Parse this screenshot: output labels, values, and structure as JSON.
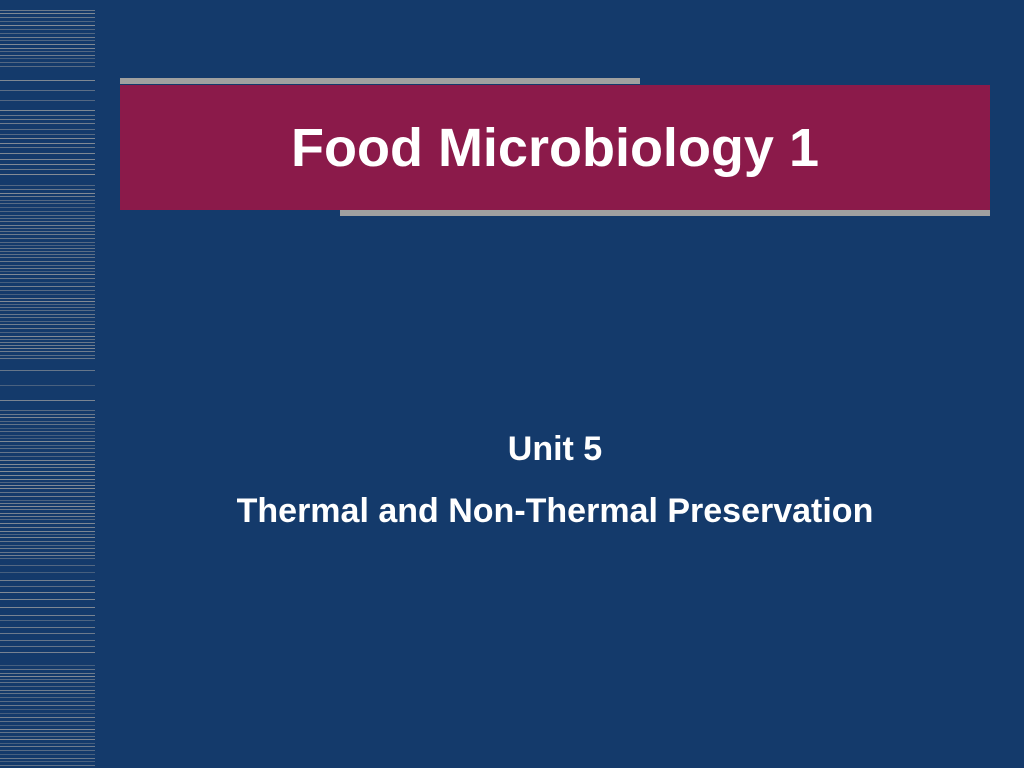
{
  "slide": {
    "title": "Food Microbiology 1",
    "unit_label": "Unit 5",
    "subtitle": "Thermal and Non-Thermal Preservation"
  },
  "style": {
    "background_color": "#143a6b",
    "title_box_color": "#8b1a4a",
    "accent_line_color": "#a0a0a0",
    "text_color": "#ffffff",
    "title_fontsize": 54,
    "subtitle_fontsize": 34,
    "left_stripe_width": 95
  }
}
